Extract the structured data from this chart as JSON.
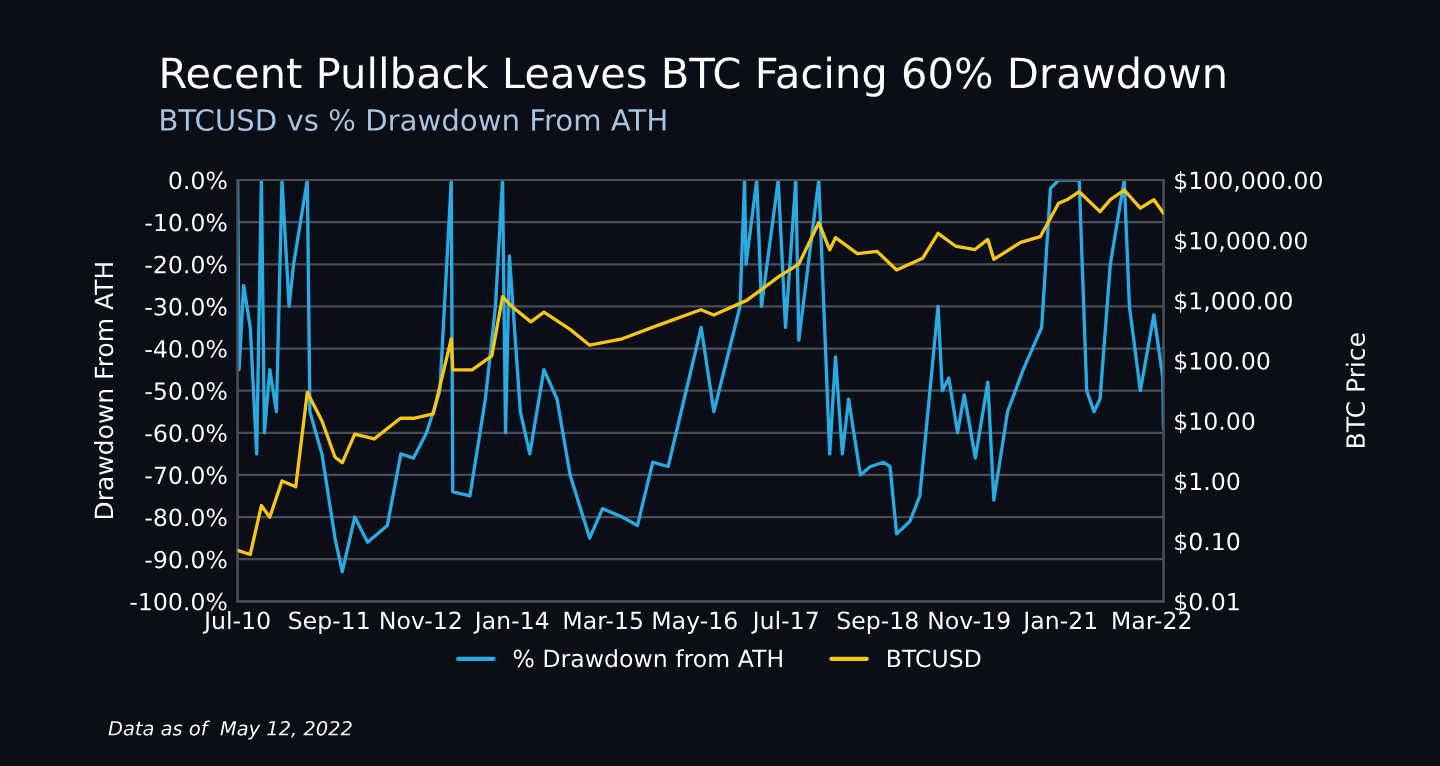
{
  "chart_data": {
    "type": "line",
    "title": "Recent Pullback Leaves BTC Facing 60% Drawdown",
    "subtitle": "BTCUSD vs % Drawdown From ATH",
    "ylabel": "Drawdown From ATH",
    "y2label": "BTC Price",
    "annotations": [
      "Data as of  May 12, 2022"
    ],
    "series": [
      {
        "name": "% Drawdown from ATH",
        "color": "#29abe2",
        "x": [
          "2010-07-18",
          "2010-07-25",
          "2010-08-15",
          "2010-09-15",
          "2010-10-15",
          "2010-11-06",
          "2010-11-20",
          "2010-12-15",
          "2011-01-15",
          "2011-02-10",
          "2011-03-15",
          "2011-04-05",
          "2011-06-08",
          "2011-06-20",
          "2011-08-15",
          "2011-10-15",
          "2011-11-18",
          "2012-01-15",
          "2012-03-15",
          "2012-06-15",
          "2012-08-17",
          "2012-10-15",
          "2012-12-15",
          "2013-02-15",
          "2013-04-09",
          "2013-04-16",
          "2013-07-05",
          "2013-09-15",
          "2013-11-01",
          "2013-12-04",
          "2013-12-18",
          "2014-01-05",
          "2014-02-25",
          "2014-04-10",
          "2014-06-15",
          "2014-08-15",
          "2014-10-15",
          "2015-01-14",
          "2015-03-15",
          "2015-06-15",
          "2015-08-25",
          "2015-11-04",
          "2016-01-15",
          "2016-06-17",
          "2016-08-15",
          "2016-12-15",
          "2017-01-05",
          "2017-01-12",
          "2017-03-03",
          "2017-03-25",
          "2017-06-11",
          "2017-07-15",
          "2017-09-01",
          "2017-09-15",
          "2017-12-17",
          "2018-02-06",
          "2018-03-05",
          "2018-04-06",
          "2018-05-05",
          "2018-06-29",
          "2018-08-15",
          "2018-10-15",
          "2018-11-14",
          "2018-12-15",
          "2019-02-15",
          "2019-04-02",
          "2019-06-26",
          "2019-07-16",
          "2019-08-15",
          "2019-09-25",
          "2019-10-26",
          "2019-12-17",
          "2020-02-13",
          "2020-03-12",
          "2020-05-15",
          "2020-07-27",
          "2020-10-21",
          "2020-12-01",
          "2021-01-08",
          "2021-02-21",
          "2021-04-14",
          "2021-05-19",
          "2021-06-22",
          "2021-07-20",
          "2021-09-06",
          "2021-11-10",
          "2021-12-04",
          "2022-01-24",
          "2022-03-28",
          "2022-05-09",
          "2022-05-12"
        ],
        "values": [
          0,
          -45,
          -25,
          -35,
          -65,
          0,
          -60,
          -45,
          -55,
          0,
          -30,
          -20,
          0,
          -55,
          -65,
          -85,
          -93,
          -80,
          -86,
          -82,
          -65,
          -66,
          -60,
          -50,
          0,
          -74,
          -75,
          -52,
          -30,
          0,
          -60,
          -18,
          -55,
          -65,
          -45,
          -52,
          -70,
          -85,
          -78,
          -80,
          -82,
          -67,
          -68,
          -35,
          -55,
          -30,
          0,
          -20,
          0,
          -30,
          0,
          -35,
          0,
          -38,
          0,
          -65,
          -42,
          -65,
          -52,
          -70,
          -68,
          -67,
          -68,
          -84,
          -81,
          -75,
          -30,
          -50,
          -47,
          -60,
          -51,
          -66,
          -48,
          -76,
          -55,
          -45,
          -35,
          -2,
          0,
          0,
          0,
          -50,
          -55,
          -52,
          -20,
          0,
          -30,
          -50,
          -32,
          -47,
          -59
        ]
      },
      {
        "name": "BTCUSD",
        "color": "#f5c518",
        "axis": "y2",
        "x": [
          "2010-07-18",
          "2010-09-15",
          "2010-11-06",
          "2010-12-15",
          "2011-02-10",
          "2011-04-15",
          "2011-06-08",
          "2011-08-15",
          "2011-10-15",
          "2011-11-18",
          "2012-01-15",
          "2012-04-15",
          "2012-08-15",
          "2012-10-15",
          "2013-01-15",
          "2013-04-09",
          "2013-04-16",
          "2013-07-15",
          "2013-10-15",
          "2013-12-04",
          "2014-01-15",
          "2014-04-15",
          "2014-06-15",
          "2014-10-15",
          "2015-01-14",
          "2015-06-15",
          "2015-11-15",
          "2016-06-15",
          "2016-08-15",
          "2017-01-15",
          "2017-06-15",
          "2017-09-15",
          "2017-12-17",
          "2018-02-06",
          "2018-03-05",
          "2018-06-15",
          "2018-09-15",
          "2018-12-15",
          "2019-04-15",
          "2019-06-26",
          "2019-09-15",
          "2019-12-15",
          "2020-02-13",
          "2020-03-12",
          "2020-07-15",
          "2020-10-15",
          "2021-01-08",
          "2021-02-21",
          "2021-04-14",
          "2021-07-20",
          "2021-09-06",
          "2021-11-10",
          "2022-01-24",
          "2022-03-28",
          "2022-05-12"
        ],
        "values": [
          0.07,
          0.06,
          0.39,
          0.25,
          1.0,
          0.8,
          29.6,
          10,
          2.5,
          2.0,
          6,
          5,
          11,
          11,
          13,
          230,
          70,
          70,
          120,
          1150,
          800,
          440,
          640,
          330,
          180,
          230,
          370,
          700,
          570,
          1000,
          2500,
          4000,
          19500,
          6900,
          11000,
          6000,
          6500,
          3200,
          5000,
          13000,
          8000,
          7000,
          10300,
          4800,
          9200,
          11500,
          41000,
          48000,
          64000,
          29800,
          47000,
          68000,
          34000,
          47000,
          28000
        ]
      }
    ],
    "xlim": [
      "2010-07-18",
      "2022-05-12"
    ],
    "xticks": [
      {
        "value": "2010-07-18",
        "label": "Jul-10"
      },
      {
        "value": "2011-09-18",
        "label": "Sep-11"
      },
      {
        "value": "2012-11-18",
        "label": "Nov-12"
      },
      {
        "value": "2014-01-18",
        "label": "Jan-14"
      },
      {
        "value": "2015-03-18",
        "label": "Mar-15"
      },
      {
        "value": "2016-05-18",
        "label": "May-16"
      },
      {
        "value": "2017-07-18",
        "label": "Jul-17"
      },
      {
        "value": "2018-09-18",
        "label": "Sep-18"
      },
      {
        "value": "2019-11-18",
        "label": "Nov-19"
      },
      {
        "value": "2021-01-18",
        "label": "Jan-21"
      },
      {
        "value": "2022-03-18",
        "label": "Mar-22"
      }
    ],
    "ylim": [
      -100,
      0
    ],
    "yticks": [
      {
        "value": 0,
        "label": "0.0%"
      },
      {
        "value": -10,
        "label": "-10.0%"
      },
      {
        "value": -20,
        "label": "-20.0%"
      },
      {
        "value": -30,
        "label": "-30.0%"
      },
      {
        "value": -40,
        "label": "-40.0%"
      },
      {
        "value": -50,
        "label": "-50.0%"
      },
      {
        "value": -60,
        "label": "-60.0%"
      },
      {
        "value": -70,
        "label": "-70.0%"
      },
      {
        "value": -80,
        "label": "-80.0%"
      },
      {
        "value": -90,
        "label": "-90.0%"
      },
      {
        "value": -100,
        "label": "-100.0%"
      }
    ],
    "log": "y2",
    "y2lim": [
      0.01,
      100000
    ],
    "y2ticks": [
      {
        "value": 0.01,
        "label": "$0.01"
      },
      {
        "value": 0.1,
        "label": "$0.10"
      },
      {
        "value": 1,
        "label": "$1.00"
      },
      {
        "value": 10,
        "label": "$10.00"
      },
      {
        "value": 100,
        "label": "$100.00"
      },
      {
        "value": 1000,
        "label": "$1,000.00"
      },
      {
        "value": 10000,
        "label": "$10,000.00"
      },
      {
        "value": 100000,
        "label": "$100,000.00"
      }
    ],
    "grid": "y",
    "legend": "bottom",
    "marker": "none",
    "line_style": "solid"
  }
}
